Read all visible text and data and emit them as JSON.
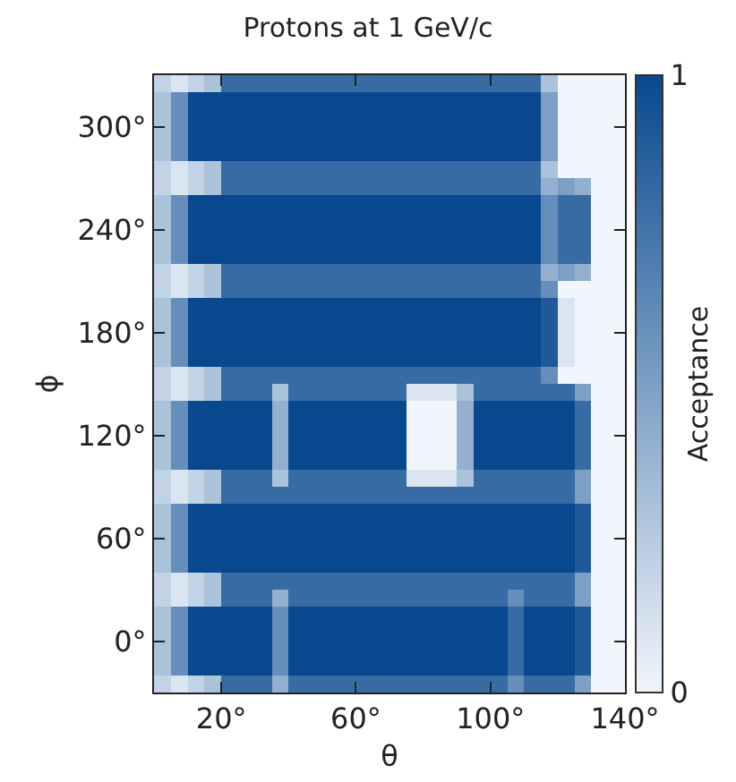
{
  "chart_data": {
    "type": "heatmap",
    "title": "Protons at 1 GeV/c",
    "xlabel": "θ",
    "ylabel": "ϕ",
    "clabel": "Acceptance",
    "x": [
      2.5,
      7.5,
      12.5,
      17.5,
      22.5,
      27.5,
      32.5,
      37.5,
      42.5,
      47.5,
      52.5,
      57.5,
      62.5,
      67.5,
      72.5,
      77.5,
      82.5,
      87.5,
      92.5,
      97.5,
      102.5,
      107.5,
      112.5,
      117.5,
      122.5,
      127.5,
      132.5,
      137.5
    ],
    "y": [
      325,
      315,
      305,
      295,
      285,
      275,
      265,
      255,
      245,
      235,
      225,
      215,
      205,
      195,
      185,
      175,
      165,
      155,
      145,
      135,
      125,
      115,
      105,
      95,
      85,
      75,
      65,
      55,
      45,
      35,
      25,
      15,
      5,
      -5,
      -15,
      -25
    ],
    "xlim": [
      0,
      140
    ],
    "ylim": [
      -30,
      330
    ],
    "xticks": [
      {
        "value": 20,
        "label": "20°"
      },
      {
        "value": 60,
        "label": "60°"
      },
      {
        "value": 100,
        "label": "100°"
      },
      {
        "value": 140,
        "label": "140°"
      }
    ],
    "yticks": [
      {
        "value": 0,
        "label": "0°"
      },
      {
        "value": 60,
        "label": "60°"
      },
      {
        "value": 120,
        "label": "120°"
      },
      {
        "value": 180,
        "label": "180°"
      },
      {
        "value": 240,
        "label": "240°"
      },
      {
        "value": 300,
        "label": "300°"
      }
    ],
    "clim": [
      0,
      1
    ],
    "cticks": [
      0,
      1
    ],
    "colors": [
      "#f1f6fc",
      "#08488e"
    ],
    "cells": [
      [
        0.2,
        0.1,
        0.2,
        0.3,
        0.8,
        0.8,
        0.8,
        0.8,
        0.8,
        0.8,
        0.8,
        0.8,
        0.8,
        0.8,
        0.8,
        0.8,
        0.8,
        0.8,
        0.8,
        0.8,
        0.8,
        0.8,
        0.8,
        0.3,
        0,
        0,
        0,
        0
      ],
      [
        0.3,
        0.6,
        1,
        1,
        1,
        1,
        1,
        1,
        1,
        1,
        1,
        1,
        1,
        1,
        1,
        1,
        1,
        1,
        1,
        1,
        1,
        1,
        1,
        0.5,
        0,
        0,
        0,
        0
      ],
      [
        0.3,
        0.6,
        1,
        1,
        1,
        1,
        1,
        1,
        1,
        1,
        1,
        1,
        1,
        1,
        1,
        1,
        1,
        1,
        1,
        1,
        1,
        1,
        1,
        0.5,
        0,
        0,
        0,
        0
      ],
      [
        0.3,
        0.6,
        1,
        1,
        1,
        1,
        1,
        1,
        1,
        1,
        1,
        1,
        1,
        1,
        1,
        1,
        1,
        1,
        1,
        1,
        1,
        1,
        1,
        0.5,
        0,
        0,
        0,
        0
      ],
      [
        0.3,
        0.6,
        1,
        1,
        1,
        1,
        1,
        1,
        1,
        1,
        1,
        1,
        1,
        1,
        1,
        1,
        1,
        1,
        1,
        1,
        1,
        1,
        1,
        0.5,
        0,
        0,
        0,
        0
      ],
      [
        0.2,
        0.1,
        0.2,
        0.3,
        0.8,
        0.8,
        0.8,
        0.8,
        0.8,
        0.8,
        0.8,
        0.8,
        0.8,
        0.8,
        0.8,
        0.8,
        0.8,
        0.8,
        0.8,
        0.8,
        0.8,
        0.8,
        0.8,
        0.3,
        0,
        0,
        0,
        0
      ],
      [
        0.2,
        0.1,
        0.2,
        0.3,
        0.8,
        0.8,
        0.8,
        0.8,
        0.8,
        0.8,
        0.8,
        0.8,
        0.8,
        0.8,
        0.8,
        0.8,
        0.8,
        0.8,
        0.8,
        0.8,
        0.8,
        0.8,
        0.8,
        0.4,
        0.5,
        0.4,
        0,
        0
      ],
      [
        0.3,
        0.6,
        1,
        1,
        1,
        1,
        1,
        1,
        1,
        1,
        1,
        1,
        1,
        1,
        1,
        1,
        1,
        1,
        1,
        1,
        1,
        1,
        1,
        0.6,
        0.8,
        0.8,
        0,
        0
      ],
      [
        0.3,
        0.6,
        1,
        1,
        1,
        1,
        1,
        1,
        1,
        1,
        1,
        1,
        1,
        1,
        1,
        1,
        1,
        1,
        1,
        1,
        1,
        1,
        1,
        0.6,
        0.8,
        0.8,
        0,
        0
      ],
      [
        0.3,
        0.6,
        1,
        1,
        1,
        1,
        1,
        1,
        1,
        1,
        1,
        1,
        1,
        1,
        1,
        1,
        1,
        1,
        1,
        1,
        1,
        1,
        1,
        0.6,
        0.8,
        0.8,
        0,
        0
      ],
      [
        0.3,
        0.6,
        1,
        1,
        1,
        1,
        1,
        1,
        1,
        1,
        1,
        1,
        1,
        1,
        1,
        1,
        1,
        1,
        1,
        1,
        1,
        1,
        1,
        0.6,
        0.8,
        0.8,
        0,
        0
      ],
      [
        0.2,
        0.1,
        0.2,
        0.3,
        0.8,
        0.8,
        0.8,
        0.8,
        0.8,
        0.8,
        0.8,
        0.8,
        0.8,
        0.8,
        0.8,
        0.8,
        0.8,
        0.8,
        0.8,
        0.8,
        0.8,
        0.8,
        0.8,
        0.4,
        0.5,
        0.4,
        0,
        0
      ],
      [
        0.2,
        0.1,
        0.2,
        0.3,
        0.8,
        0.8,
        0.8,
        0.8,
        0.8,
        0.8,
        0.8,
        0.8,
        0.8,
        0.8,
        0.8,
        0.8,
        0.8,
        0.8,
        0.8,
        0.8,
        0.8,
        0.8,
        0.8,
        0.6,
        0,
        0,
        0,
        0
      ],
      [
        0.3,
        0.6,
        1,
        1,
        1,
        1,
        1,
        1,
        1,
        1,
        1,
        1,
        1,
        1,
        1,
        1,
        1,
        1,
        1,
        1,
        1,
        1,
        1,
        0.9,
        0.1,
        0,
        0,
        0
      ],
      [
        0.3,
        0.6,
        1,
        1,
        1,
        1,
        1,
        1,
        1,
        1,
        1,
        1,
        1,
        1,
        1,
        1,
        1,
        1,
        1,
        1,
        1,
        1,
        1,
        0.9,
        0.1,
        0,
        0,
        0
      ],
      [
        0.3,
        0.6,
        1,
        1,
        1,
        1,
        1,
        1,
        1,
        1,
        1,
        1,
        1,
        1,
        1,
        1,
        1,
        1,
        1,
        1,
        1,
        1,
        1,
        0.9,
        0.1,
        0,
        0,
        0
      ],
      [
        0.3,
        0.6,
        1,
        1,
        1,
        1,
        1,
        1,
        1,
        1,
        1,
        1,
        1,
        1,
        1,
        1,
        1,
        1,
        1,
        1,
        1,
        1,
        1,
        0.9,
        0.1,
        0,
        0,
        0
      ],
      [
        0.2,
        0.1,
        0.2,
        0.3,
        0.8,
        0.8,
        0.8,
        0.8,
        0.8,
        0.8,
        0.8,
        0.8,
        0.8,
        0.8,
        0.8,
        0.8,
        0.8,
        0.8,
        0.8,
        0.8,
        0.8,
        0.8,
        0.8,
        0.6,
        0,
        0,
        0,
        0
      ],
      [
        0.2,
        0.1,
        0.2,
        0.3,
        0.8,
        0.8,
        0.8,
        0.3,
        0.8,
        0.8,
        0.8,
        0.8,
        0.8,
        0.8,
        0.8,
        0.1,
        0.1,
        0.1,
        0.3,
        0.8,
        0.8,
        0.8,
        0.8,
        0.8,
        0.8,
        0.5,
        0,
        0
      ],
      [
        0.3,
        0.6,
        1,
        1,
        1,
        1,
        1,
        0.4,
        1,
        1,
        1,
        1,
        1,
        1,
        1,
        0,
        0,
        0,
        0.4,
        1,
        1,
        1,
        1,
        1,
        1,
        0.8,
        0,
        0
      ],
      [
        0.3,
        0.6,
        1,
        1,
        1,
        1,
        1,
        0.4,
        1,
        1,
        1,
        1,
        1,
        1,
        1,
        0,
        0,
        0,
        0.4,
        1,
        1,
        1,
        1,
        1,
        1,
        0.8,
        0,
        0
      ],
      [
        0.3,
        0.6,
        1,
        1,
        1,
        1,
        1,
        0.4,
        1,
        1,
        1,
        1,
        1,
        1,
        1,
        0,
        0,
        0,
        0.4,
        1,
        1,
        1,
        1,
        1,
        1,
        0.8,
        0,
        0
      ],
      [
        0.3,
        0.6,
        1,
        1,
        1,
        1,
        1,
        0.4,
        1,
        1,
        1,
        1,
        1,
        1,
        1,
        0,
        0,
        0,
        0.4,
        1,
        1,
        1,
        1,
        1,
        1,
        0.8,
        0,
        0
      ],
      [
        0.2,
        0.1,
        0.2,
        0.3,
        0.8,
        0.8,
        0.8,
        0.3,
        0.8,
        0.8,
        0.8,
        0.8,
        0.8,
        0.8,
        0.8,
        0.1,
        0.1,
        0.1,
        0.3,
        0.8,
        0.8,
        0.8,
        0.8,
        0.8,
        0.8,
        0.5,
        0,
        0
      ],
      [
        0.2,
        0.1,
        0.2,
        0.3,
        0.8,
        0.8,
        0.8,
        0.8,
        0.8,
        0.8,
        0.8,
        0.8,
        0.8,
        0.8,
        0.8,
        0.8,
        0.8,
        0.8,
        0.8,
        0.8,
        0.8,
        0.8,
        0.8,
        0.8,
        0.8,
        0.5,
        0,
        0
      ],
      [
        0.3,
        0.6,
        1,
        1,
        1,
        1,
        1,
        1,
        1,
        1,
        1,
        1,
        1,
        1,
        1,
        1,
        1,
        1,
        1,
        1,
        1,
        1,
        1,
        1,
        1,
        0.9,
        0,
        0
      ],
      [
        0.3,
        0.6,
        1,
        1,
        1,
        1,
        1,
        1,
        1,
        1,
        1,
        1,
        1,
        1,
        1,
        1,
        1,
        1,
        1,
        1,
        1,
        1,
        1,
        1,
        1,
        0.9,
        0,
        0
      ],
      [
        0.3,
        0.6,
        1,
        1,
        1,
        1,
        1,
        1,
        1,
        1,
        1,
        1,
        1,
        1,
        1,
        1,
        1,
        1,
        1,
        1,
        1,
        1,
        1,
        1,
        1,
        0.9,
        0,
        0
      ],
      [
        0.3,
        0.6,
        1,
        1,
        1,
        1,
        1,
        1,
        1,
        1,
        1,
        1,
        1,
        1,
        1,
        1,
        1,
        1,
        1,
        1,
        1,
        1,
        1,
        1,
        1,
        0.9,
        0,
        0
      ],
      [
        0.2,
        0.1,
        0.2,
        0.3,
        0.8,
        0.8,
        0.8,
        0.8,
        0.8,
        0.8,
        0.8,
        0.8,
        0.8,
        0.8,
        0.8,
        0.8,
        0.8,
        0.8,
        0.8,
        0.8,
        0.8,
        0.8,
        0.8,
        0.8,
        0.8,
        0.5,
        0,
        0
      ],
      [
        0.2,
        0.1,
        0.2,
        0.3,
        0.8,
        0.8,
        0.8,
        0.4,
        0.8,
        0.8,
        0.8,
        0.8,
        0.8,
        0.8,
        0.8,
        0.8,
        0.8,
        0.8,
        0.8,
        0.8,
        0.8,
        0.6,
        0.8,
        0.8,
        0.8,
        0.5,
        0,
        0
      ],
      [
        0.3,
        0.6,
        1,
        1,
        1,
        1,
        1,
        0.6,
        1,
        1,
        1,
        1,
        1,
        1,
        1,
        1,
        1,
        1,
        1,
        1,
        1,
        0.8,
        1,
        1,
        1,
        0.9,
        0,
        0
      ],
      [
        0.3,
        0.6,
        1,
        1,
        1,
        1,
        1,
        0.6,
        1,
        1,
        1,
        1,
        1,
        1,
        1,
        1,
        1,
        1,
        1,
        1,
        1,
        0.8,
        1,
        1,
        1,
        0.9,
        0,
        0
      ],
      [
        0.3,
        0.6,
        1,
        1,
        1,
        1,
        1,
        0.6,
        1,
        1,
        1,
        1,
        1,
        1,
        1,
        1,
        1,
        1,
        1,
        1,
        1,
        0.8,
        1,
        1,
        1,
        0.9,
        0,
        0
      ],
      [
        0.3,
        0.6,
        1,
        1,
        1,
        1,
        1,
        0.6,
        1,
        1,
        1,
        1,
        1,
        1,
        1,
        1,
        1,
        1,
        1,
        1,
        1,
        0.8,
        1,
        1,
        1,
        0.9,
        0,
        0
      ],
      [
        0.2,
        0.1,
        0.2,
        0.3,
        0.8,
        0.8,
        0.8,
        0.4,
        0.8,
        0.8,
        0.8,
        0.8,
        0.8,
        0.8,
        0.8,
        0.8,
        0.8,
        0.8,
        0.8,
        0.8,
        0.8,
        0.6,
        0.8,
        0.8,
        0.8,
        0.5,
        0,
        0
      ]
    ]
  }
}
